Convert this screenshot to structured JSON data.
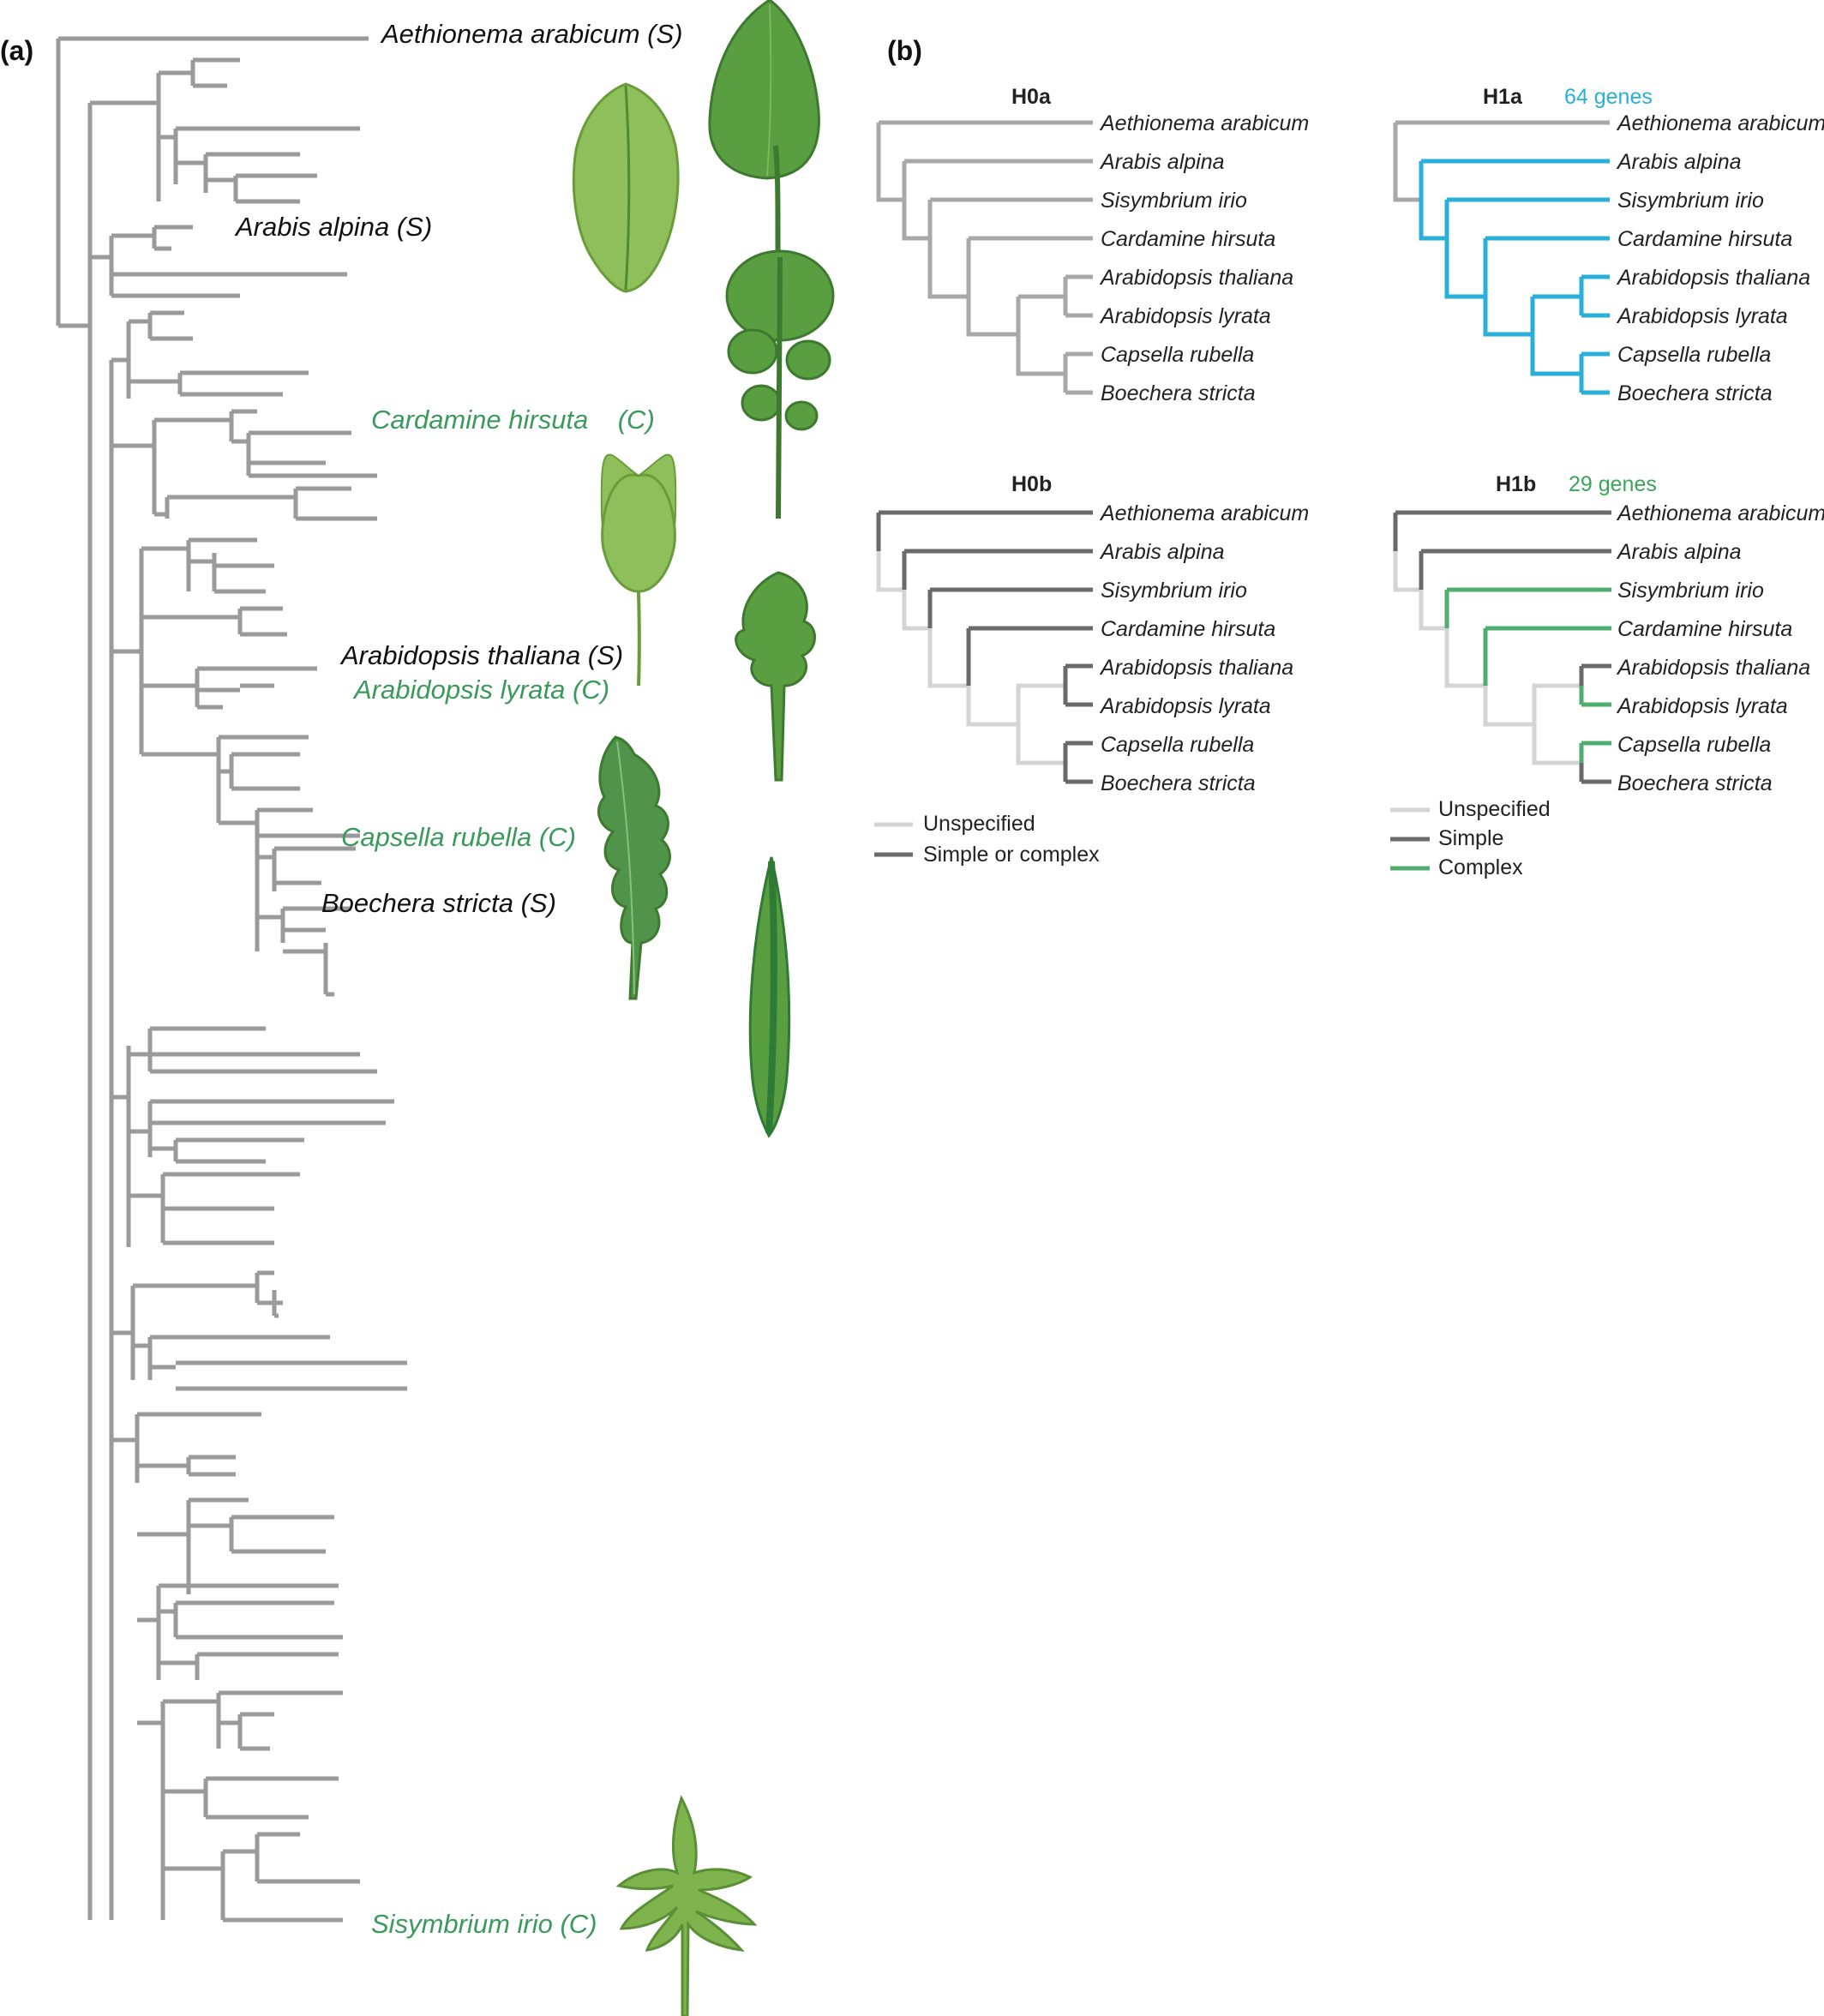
{
  "colors": {
    "simple_text": "#111111",
    "complex_text": "#3a9a5c",
    "branch_grey": "#8c8c8c",
    "blue": "#29afd8",
    "dark": "#6a6a6a",
    "light": "#d0d0d0",
    "green": "#4fae6e"
  },
  "panel_a": {
    "label": "(a)",
    "species": [
      {
        "name": "Aethionema arabicum (S)",
        "type": "simple"
      },
      {
        "name": "Arabis alpina (S)",
        "type": "simple"
      },
      {
        "name": "Cardamine hirsuta    (C)",
        "type": "complex"
      },
      {
        "name": "Arabidopsis thaliana (S)",
        "type": "simple"
      },
      {
        "name": "Arabidopsis lyrata (C)",
        "type": "complex"
      },
      {
        "name": "Capsella rubella (C)",
        "type": "complex"
      },
      {
        "name": "Boechera stricta (S)",
        "type": "simple"
      },
      {
        "name": "Sisymbrium irio (C)",
        "type": "complex"
      }
    ],
    "leaf_icons": [
      "aethionema-leaf-icon",
      "arabis-leaf-icon",
      "cardamine-leaf-icon",
      "thaliana-leaf-icon",
      "lyrata-leaf-icon",
      "capsella-leaf-icon",
      "boechera-leaf-icon",
      "sisymbrium-leaf-icon"
    ]
  },
  "panel_b": {
    "label": "(b)",
    "tips": [
      "Aethionema arabicum",
      "Arabis alpina",
      "Sisymbrium irio",
      "Cardamine hirsuta",
      "Arabidopsis thaliana",
      "Arabidopsis lyrata",
      "Capsella rubella",
      "Boechera stricta"
    ],
    "hypotheses": {
      "h0a": {
        "title": "H0a",
        "genes": ""
      },
      "h1a": {
        "title": "H1a",
        "genes": "64 genes"
      },
      "h0b": {
        "title": "H0b",
        "genes": ""
      },
      "h1b": {
        "title": "H1b",
        "genes": "29 genes"
      }
    },
    "legend_0b": [
      "Unspecified",
      "Simple or complex"
    ],
    "legend_1b": [
      "Unspecified",
      "Simple",
      "Complex"
    ]
  }
}
